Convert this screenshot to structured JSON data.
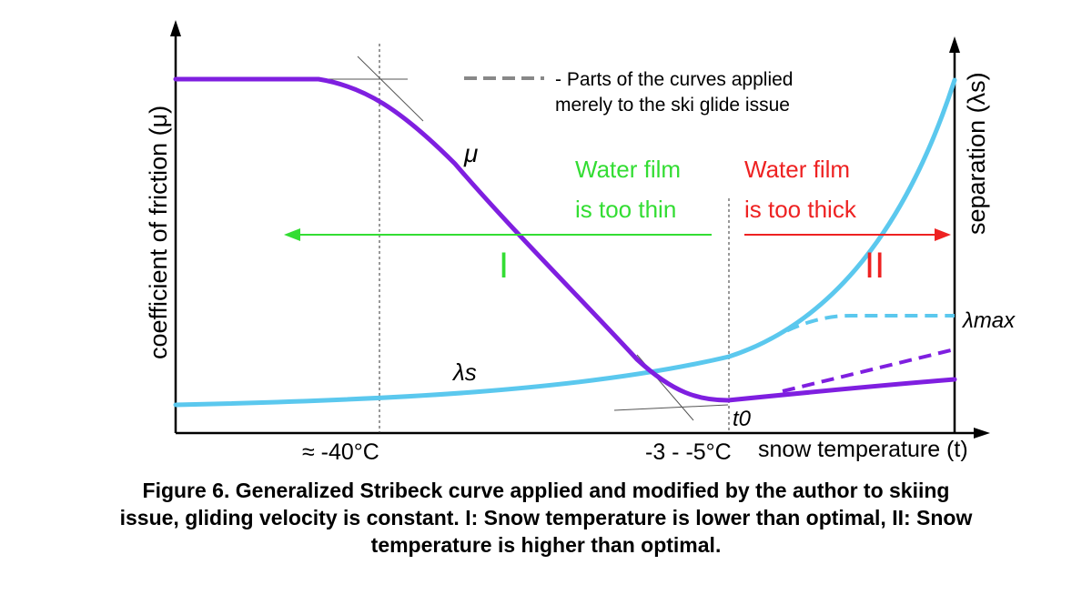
{
  "figure": {
    "y_axis_left_label": "coefficient of friction (μ)",
    "y_axis_right_label": "separation (λs)",
    "x_axis_label": "snow temperature (t)",
    "x_tick_left": "≈ -40°C",
    "x_tick_right": "-3 - -5°C",
    "legend_line1": "- Parts of the curves applied",
    "legend_line2": "merely to the ski glide issue",
    "curve_mu_label": "μ",
    "curve_lambda_label": "λs",
    "lambda_max_label": "λmax",
    "t0_label": "t0",
    "region_thin_line1": "Water film",
    "region_thin_line2": "is too thin",
    "region_thick_line1": "Water film",
    "region_thick_line2": "is too thick",
    "region_I": "I",
    "region_II": "II",
    "colors": {
      "mu_curve": "#7f1fe0",
      "lambda_curve": "#5bc8ee",
      "thin_region": "#33dd33",
      "thick_region": "#ee2222",
      "axis": "#000000",
      "legend_dash": "#888888"
    }
  },
  "caption": {
    "line1": "Figure 6. Generalized Stribeck curve applied and modified by the author to skiing",
    "line2": "issue, gliding velocity is constant. I: Snow temperature is lower than optimal, II: Snow",
    "line3": "temperature is higher than optimal."
  }
}
